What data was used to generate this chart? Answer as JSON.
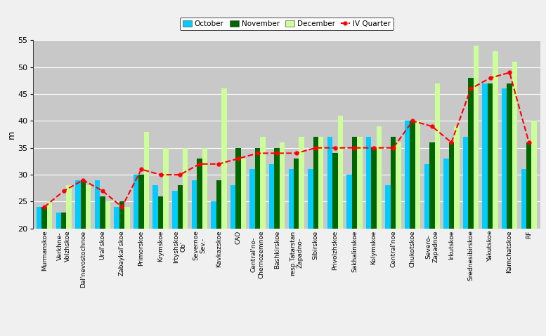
{
  "categories": [
    "Murmanskoe",
    "Verkhne-\nVolzhskoe",
    "Dal'nevostochnoe",
    "Ural'skoe",
    "Zabaykal'skoe",
    "Primorskoe",
    "Krymskoe",
    "Irtyshskoe\nOb'",
    "Severnoe\nSev.-",
    "Kavkazskoe",
    "CAO",
    "Central'no-\nChernozemnoe",
    "Bashkirskoe",
    "resp.Tatarstan\nZapadno-",
    "Sibirskoe",
    "Privolzhskoe",
    "Sakhalinskoe",
    "Kolymskoe",
    "Central'noe",
    "Chukotskoe",
    "Severo-\nZapadnoe",
    "Irkutskoe",
    "Srednesibirskoe",
    "Yakutskoe",
    "Kamchatskoe",
    "RF"
  ],
  "october": [
    24,
    23,
    29,
    29,
    24,
    30,
    28,
    27,
    29,
    25,
    28,
    31,
    32,
    31,
    31,
    37,
    30,
    37,
    28,
    40,
    32,
    33,
    37,
    47,
    46,
    31
  ],
  "november": [
    24,
    23,
    29,
    26,
    25,
    30,
    26,
    28,
    33,
    29,
    35,
    35,
    35,
    33,
    37,
    34,
    37,
    35,
    37,
    40,
    36,
    36,
    48,
    47,
    47,
    36
  ],
  "december": [
    25,
    28,
    28,
    25,
    24,
    38,
    35,
    35,
    35,
    46,
    33,
    37,
    36,
    37,
    37,
    41,
    37,
    39,
    36,
    40,
    47,
    39,
    54,
    53,
    51,
    40
  ],
  "iv_quarter": [
    24,
    27,
    29,
    27,
    24,
    31,
    30,
    30,
    32,
    32,
    33,
    34,
    34,
    34,
    35,
    35,
    35,
    35,
    35,
    40,
    39,
    36,
    46,
    48,
    49,
    36
  ],
  "bar_color_oct": "#00CCFF",
  "bar_color_nov": "#006600",
  "bar_color_dec": "#CCFF99",
  "line_color": "#FF0000",
  "bg_color": "#C8C8C8",
  "ylabel": "m",
  "ylim": [
    20,
    55
  ],
  "yticks": [
    20,
    25,
    30,
    35,
    40,
    45,
    50,
    55
  ],
  "figsize": [
    7.77,
    4.79
  ],
  "dpi": 100
}
